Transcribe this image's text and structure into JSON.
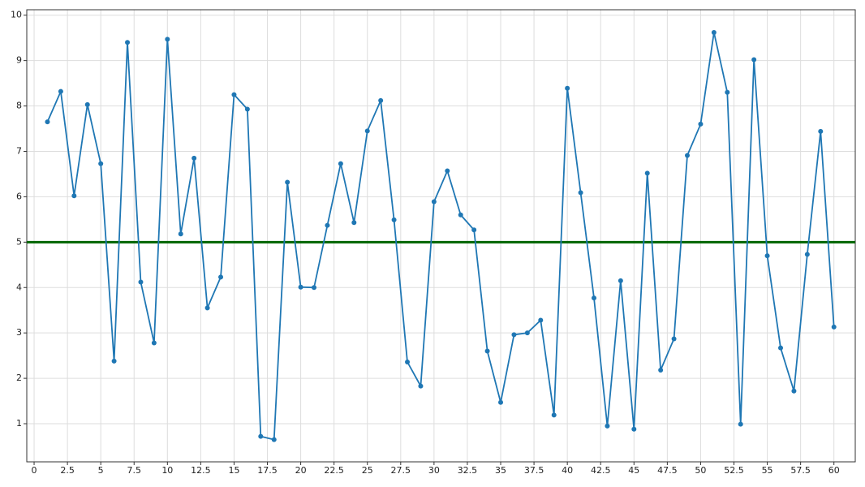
{
  "chart_data": {
    "type": "line",
    "x": [
      1,
      2,
      3,
      4,
      5,
      6,
      7,
      8,
      9,
      10,
      11,
      12,
      13,
      14,
      15,
      16,
      17,
      18,
      19,
      20,
      21,
      22,
      23,
      24,
      25,
      26,
      27,
      28,
      29,
      30,
      31,
      32,
      33,
      34,
      35,
      36,
      37,
      38,
      39,
      40,
      41,
      42,
      43,
      44,
      45,
      46,
      47,
      48,
      49,
      50,
      51,
      52,
      53,
      54,
      55,
      56,
      57,
      58,
      59,
      60
    ],
    "series": [
      {
        "color": "#1f77b4",
        "values": [
          7.65,
          8.32,
          6.02,
          8.03,
          6.73,
          2.38,
          9.4,
          4.12,
          2.78,
          9.47,
          5.18,
          6.85,
          3.55,
          4.23,
          8.25,
          7.93,
          0.72,
          0.65,
          6.32,
          4.01,
          4.0,
          5.37,
          6.73,
          5.43,
          7.45,
          8.12,
          5.49,
          2.36,
          1.83,
          5.89,
          6.57,
          5.6,
          5.27,
          2.6,
          1.47,
          2.96,
          3.0,
          3.28,
          1.19,
          8.39,
          6.09,
          3.77,
          0.95,
          4.15,
          0.88,
          6.52,
          2.18,
          2.87,
          6.91,
          7.6,
          9.62,
          8.3,
          0.99,
          9.02,
          4.7,
          2.67,
          1.72,
          4.73,
          7.44,
          3.13
        ]
      }
    ],
    "reference_line": {
      "value": 5,
      "color": "#006400"
    },
    "xlim": [
      -0.55,
      61.6
    ],
    "ylim": [
      0.16,
      10.12
    ],
    "xticks": [
      0,
      2.5,
      5,
      7.5,
      10,
      12.5,
      15,
      17.5,
      20,
      22.5,
      25,
      27.5,
      30,
      32.5,
      35,
      37.5,
      40,
      42.5,
      45,
      47.5,
      50,
      52.5,
      55,
      57.5,
      60
    ],
    "yticks": [
      1,
      2,
      3,
      4,
      5,
      6,
      7,
      8,
      9,
      10
    ],
    "grid": true
  }
}
